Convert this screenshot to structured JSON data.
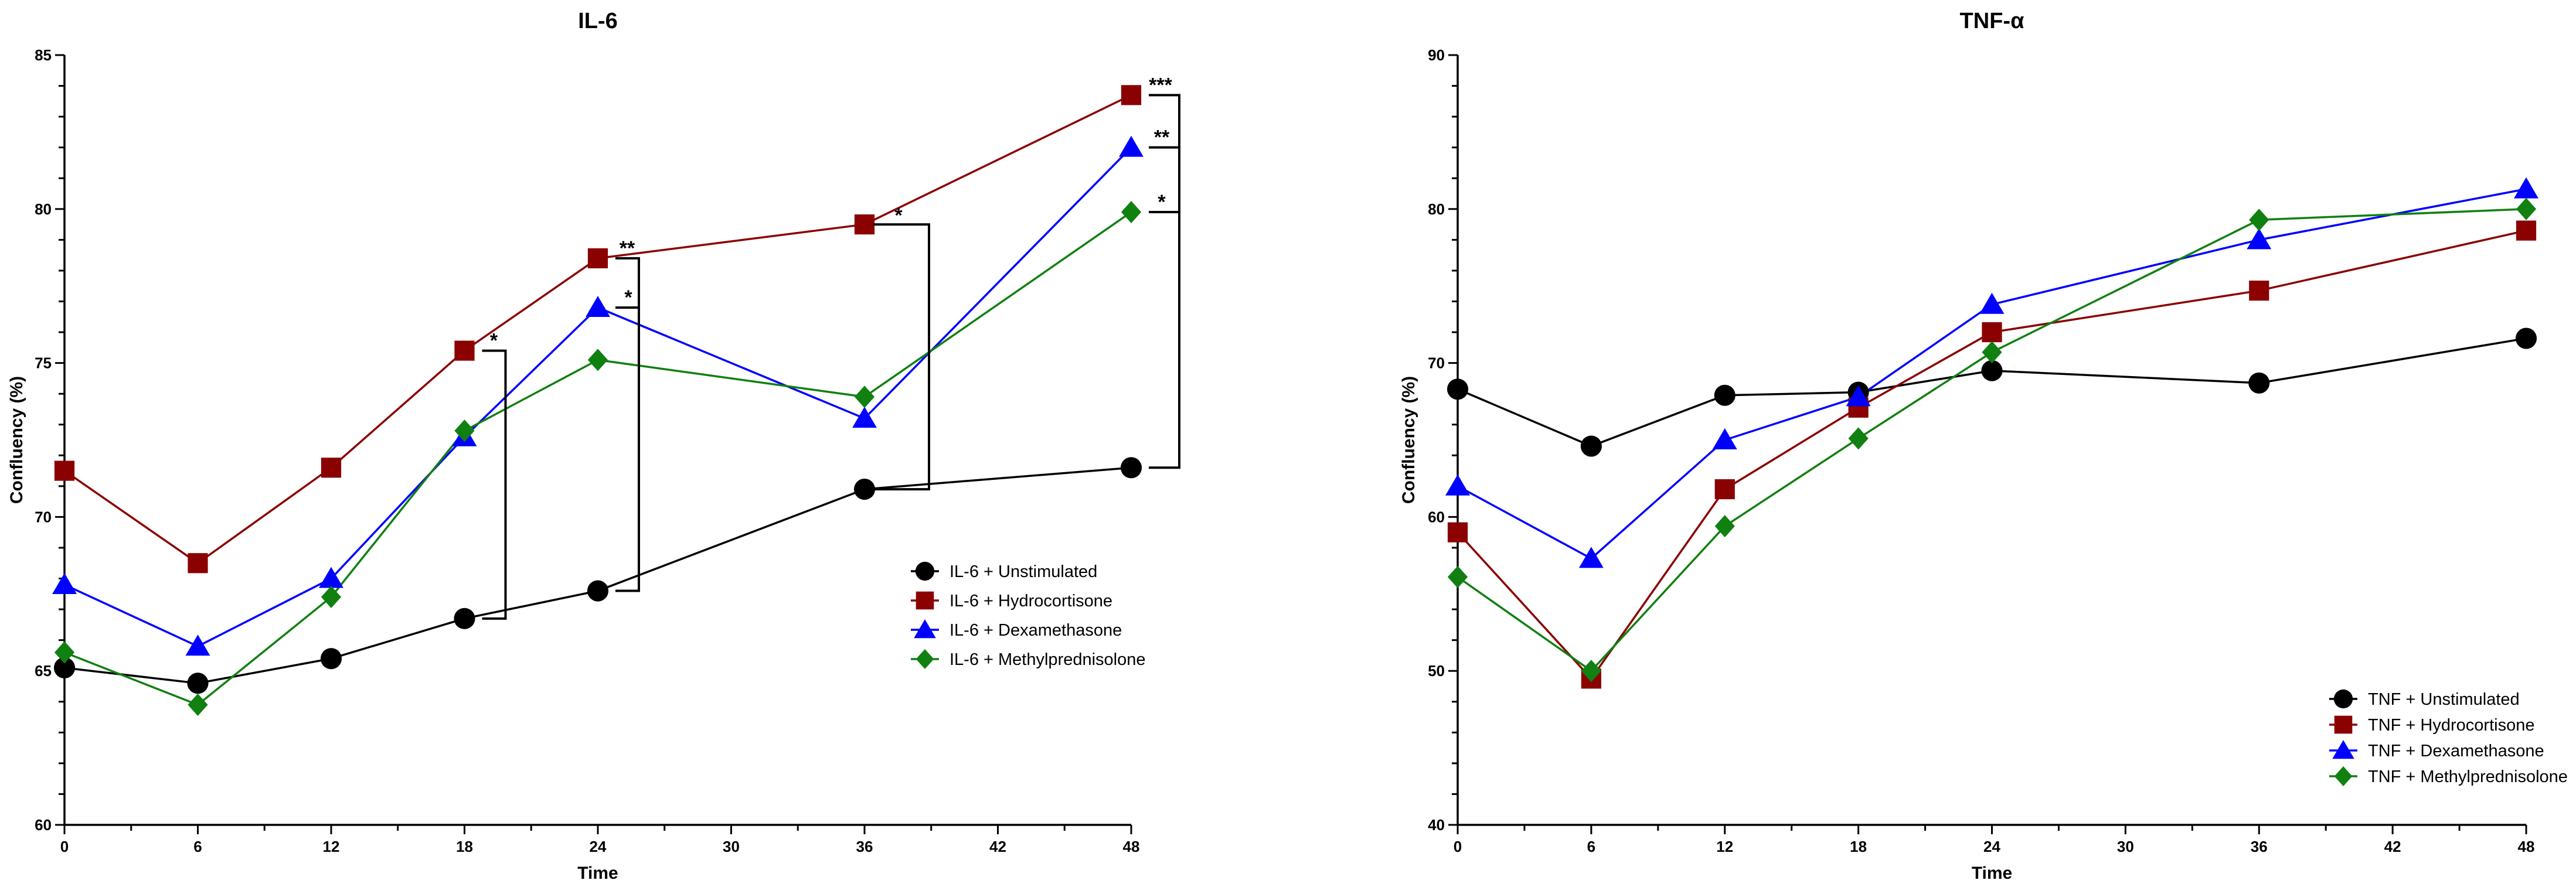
{
  "chart_data": [
    {
      "type": "line",
      "title": "IL-6",
      "xlabel": "Time",
      "ylabel": "Confluency (%)",
      "xlim": [
        0,
        48
      ],
      "ylim": [
        60,
        85
      ],
      "x_ticks": [
        0,
        6,
        12,
        18,
        24,
        30,
        36,
        42,
        48
      ],
      "y_ticks": [
        60,
        65,
        70,
        75,
        80,
        85
      ],
      "legend_position": "center-right",
      "series": [
        {
          "name": "IL-6 + Unstimulated",
          "color": "#000000",
          "marker": "circle",
          "x": [
            0,
            6,
            12,
            18,
            24,
            36,
            48
          ],
          "y": [
            65.1,
            64.6,
            65.4,
            66.7,
            67.6,
            70.9,
            71.6
          ]
        },
        {
          "name": "IL-6 + Hydrocortisone",
          "color": "#8b0000",
          "marker": "square",
          "x": [
            0,
            6,
            12,
            18,
            24,
            36,
            48
          ],
          "y": [
            71.5,
            68.5,
            71.6,
            75.4,
            78.4,
            79.5,
            83.7
          ]
        },
        {
          "name": "IL-6 + Dexamethasone",
          "color": "#0000ff",
          "marker": "triangle",
          "x": [
            0,
            6,
            12,
            18,
            24,
            36,
            48
          ],
          "y": [
            67.8,
            65.8,
            68.0,
            72.6,
            76.8,
            73.2,
            82.0
          ]
        },
        {
          "name": "IL-6 + Methylprednisolone",
          "color": "#108010",
          "marker": "diamond",
          "x": [
            0,
            6,
            12,
            18,
            24,
            36,
            48
          ],
          "y": [
            65.6,
            63.9,
            67.4,
            72.8,
            75.1,
            73.9,
            79.9
          ]
        }
      ],
      "annotations": [
        {
          "text": "*",
          "x": 18,
          "y_top": 75.4,
          "y_bottom": 66.7
        },
        {
          "text": "**",
          "x": 24,
          "y_top": 78.4,
          "y_bottom": 67.6
        },
        {
          "text": "*",
          "x": 24,
          "y_top": 76.8,
          "y_bottom": null
        },
        {
          "text": "*",
          "x": 36,
          "y_top": 79.5,
          "y_bottom": 70.9
        },
        {
          "text": "***",
          "x": 48,
          "y_top": 83.7,
          "y_bottom": 71.6
        },
        {
          "text": "**",
          "x": 48,
          "y_top": 82.0,
          "y_bottom": null
        },
        {
          "text": "*",
          "x": 48,
          "y_top": 79.9,
          "y_bottom": null
        }
      ]
    },
    {
      "type": "line",
      "title": "TNF-α",
      "xlabel": "Time",
      "ylabel": "Confluency (%)",
      "xlim": [
        0,
        48
      ],
      "ylim": [
        40,
        90
      ],
      "x_ticks": [
        0,
        6,
        12,
        18,
        24,
        30,
        36,
        42,
        48
      ],
      "y_ticks": [
        40,
        50,
        60,
        70,
        80,
        90
      ],
      "legend_position": "bottom-right",
      "series": [
        {
          "name": "TNF + Unstimulated",
          "color": "#000000",
          "marker": "circle",
          "x": [
            0,
            6,
            12,
            18,
            24,
            36,
            48
          ],
          "y": [
            68.3,
            64.6,
            67.9,
            68.1,
            69.5,
            68.7,
            71.6
          ]
        },
        {
          "name": "TNF + Hydrocortisone",
          "color": "#8b0000",
          "marker": "square",
          "x": [
            0,
            6,
            12,
            18,
            24,
            36,
            48
          ],
          "y": [
            59.0,
            49.5,
            61.8,
            67.1,
            72.0,
            74.7,
            78.6
          ]
        },
        {
          "name": "TNF + Dexamethasone",
          "color": "#0000ff",
          "marker": "triangle",
          "x": [
            0,
            6,
            12,
            18,
            24,
            36,
            48
          ],
          "y": [
            62.0,
            57.3,
            65.0,
            67.8,
            73.8,
            78.0,
            81.3
          ]
        },
        {
          "name": "TNF + Methylprednisolone",
          "color": "#108010",
          "marker": "diamond",
          "x": [
            0,
            6,
            12,
            18,
            24,
            36,
            48
          ],
          "y": [
            56.1,
            50.0,
            59.4,
            65.1,
            70.7,
            79.3,
            80.0
          ]
        }
      ],
      "annotations": []
    }
  ]
}
